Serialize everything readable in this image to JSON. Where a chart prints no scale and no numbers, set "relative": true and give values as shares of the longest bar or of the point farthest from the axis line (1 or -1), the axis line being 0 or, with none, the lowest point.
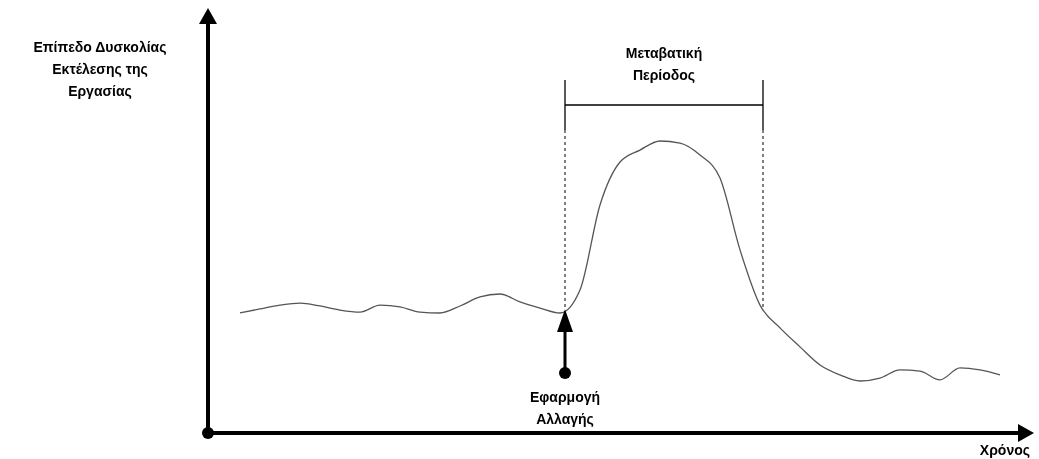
{
  "chart_data": {
    "type": "line",
    "relative": true,
    "ylabel": "Επίπεδο Δυσκολίας\nΕκτέλεσης της\nΕργασίας",
    "xlabel": "Χρόνος",
    "categories": [
      null,
      null,
      null,
      null,
      null,
      null,
      null,
      null,
      null,
      null,
      null,
      null,
      null,
      null,
      null,
      null,
      null,
      null,
      null,
      null,
      null,
      null,
      null,
      null,
      null,
      null,
      null,
      null,
      null,
      null,
      null,
      null,
      null,
      null,
      null,
      null,
      null,
      null,
      null
    ],
    "series": [
      {
        "color": "#555555",
        "values": [
          0.411,
          0.425,
          0.438,
          0.445,
          0.435,
          0.421,
          0.414,
          0.438,
          0.432,
          0.414,
          0.411,
          0.435,
          0.466,
          0.476,
          0.449,
          0.428,
          0.411,
          0.49,
          0.781,
          0.928,
          0.969,
          1,
          0.993,
          0.952,
          0.873,
          0.627,
          0.438,
          0.36,
          0.295,
          0.233,
          0.199,
          0.178,
          0.188,
          0.216,
          0.212,
          0.182,
          0.223,
          0.216,
          0.199
        ]
      }
    ],
    "annotations": [
      "Μεταβατική\nΠερίοδος",
      "Εφαρμογή\nΑλλαγής"
    ],
    "marker": "none",
    "line_style": "solid"
  }
}
